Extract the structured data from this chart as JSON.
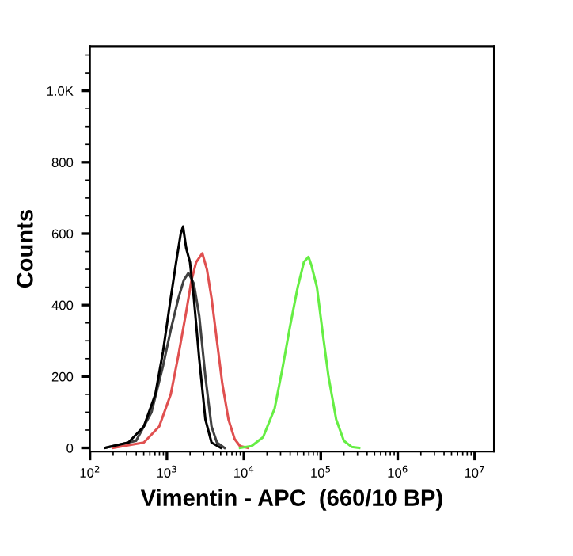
{
  "chart_data": {
    "type": "line",
    "xlabel": "Vimentin - APC  (660/10 BP)",
    "ylabel": "Counts",
    "log": "x",
    "xlim": [
      100,
      17800000
    ],
    "ylim": [
      -10,
      1125
    ],
    "xticks": [
      {
        "value": 100,
        "label": "10$^{2}$"
      },
      {
        "value": 1000,
        "label": "10$^{3}$"
      },
      {
        "value": 10000,
        "label": "10$^{4}$"
      },
      {
        "value": 100000,
        "label": "10$^{5}$"
      },
      {
        "value": 1000000,
        "label": "10$^{6}$"
      },
      {
        "value": 10000000,
        "label": "10$^{7}$"
      }
    ],
    "yticks": [
      0,
      200,
      400,
      600,
      800,
      {
        "value": 1000,
        "label": "1.0K"
      }
    ],
    "grid": false,
    "legend": false,
    "marker": "none",
    "line_style": "solid",
    "series": [
      {
        "color": "#404040",
        "x": [
          158,
          398,
          631,
          891,
          1122,
          1413,
          1660,
          1905,
          2239,
          2630,
          3162,
          3802,
          4467,
          5623
        ],
        "values": [
          0,
          20,
          100,
          230,
          330,
          420,
          470,
          490,
          460,
          370,
          200,
          60,
          15,
          0
        ]
      },
      {
        "color": "#e05050",
        "x": [
          200,
          501,
          794,
          1122,
          1413,
          1778,
          2089,
          2399,
          2884,
          3311,
          3802,
          4467,
          5248,
          6310,
          7586,
          8913,
          11220
        ],
        "values": [
          0,
          15,
          60,
          150,
          260,
          380,
          470,
          520,
          545,
          500,
          420,
          300,
          180,
          80,
          25,
          5,
          0
        ]
      },
      {
        "color": "#000000",
        "x": [
          158,
          316,
          501,
          708,
          891,
          1122,
          1318,
          1514,
          1622,
          1778,
          1995,
          2239,
          2630,
          3162,
          3802,
          5012
        ],
        "values": [
          0,
          15,
          60,
          150,
          270,
          420,
          520,
          600,
          620,
          560,
          520,
          420,
          250,
          80,
          15,
          0
        ]
      },
      {
        "color": "#66ee44",
        "x": [
          8913,
          12590,
          17780,
          25120,
          31620,
          39810,
          50120,
          60260,
          69180,
          75860,
          89130,
          104700,
          125900,
          158500,
          199500,
          251200,
          316200
        ],
        "values": [
          0,
          5,
          30,
          110,
          220,
          340,
          450,
          520,
          535,
          510,
          450,
          330,
          200,
          80,
          20,
          3,
          0
        ]
      }
    ]
  }
}
